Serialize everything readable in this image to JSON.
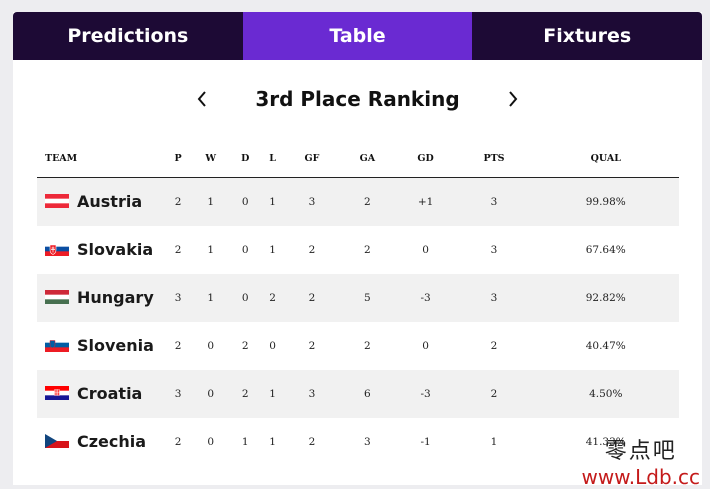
{
  "tabs": [
    {
      "label": "Predictions",
      "active": false
    },
    {
      "label": "Table",
      "active": true
    },
    {
      "label": "Fixtures",
      "active": false
    }
  ],
  "ranking": {
    "title": "3rd Place Ranking",
    "prev_icon": "chevron-left-icon",
    "next_icon": "chevron-right-icon"
  },
  "table": {
    "headers": [
      "TEAM",
      "P",
      "W",
      "D",
      "L",
      "GF",
      "GA",
      "GD",
      "PTS",
      "QUAL"
    ],
    "rows": [
      {
        "team": "Austria",
        "flag": "austria-flag-icon",
        "p": "2",
        "w": "1",
        "d": "0",
        "l": "1",
        "gf": "3",
        "ga": "2",
        "gd": "+1",
        "pts": "3",
        "qual": "99.98%"
      },
      {
        "team": "Slovakia",
        "flag": "slovakia-flag-icon",
        "p": "2",
        "w": "1",
        "d": "0",
        "l": "1",
        "gf": "2",
        "ga": "2",
        "gd": "0",
        "pts": "3",
        "qual": "67.64%"
      },
      {
        "team": "Hungary",
        "flag": "hungary-flag-icon",
        "p": "3",
        "w": "1",
        "d": "0",
        "l": "2",
        "gf": "2",
        "ga": "5",
        "gd": "-3",
        "pts": "3",
        "qual": "92.82%"
      },
      {
        "team": "Slovenia",
        "flag": "slovenia-flag-icon",
        "p": "2",
        "w": "0",
        "d": "2",
        "l": "0",
        "gf": "2",
        "ga": "2",
        "gd": "0",
        "pts": "2",
        "qual": "40.47%"
      },
      {
        "team": "Croatia",
        "flag": "croatia-flag-icon",
        "p": "3",
        "w": "0",
        "d": "2",
        "l": "1",
        "gf": "3",
        "ga": "6",
        "gd": "-3",
        "pts": "2",
        "qual": "4.50%"
      },
      {
        "team": "Czechia",
        "flag": "czechia-flag-icon",
        "p": "2",
        "w": "0",
        "d": "1",
        "l": "1",
        "gf": "2",
        "ga": "3",
        "gd": "-1",
        "pts": "1",
        "qual": "41.33%"
      }
    ]
  },
  "watermark": {
    "chinese": "零点吧",
    "url": "www.Ldb.cc"
  },
  "colors": {
    "tab_bg": "#1d0a35",
    "tab_active": "#6a2ad2",
    "row_shade": "#f1f1f1"
  }
}
